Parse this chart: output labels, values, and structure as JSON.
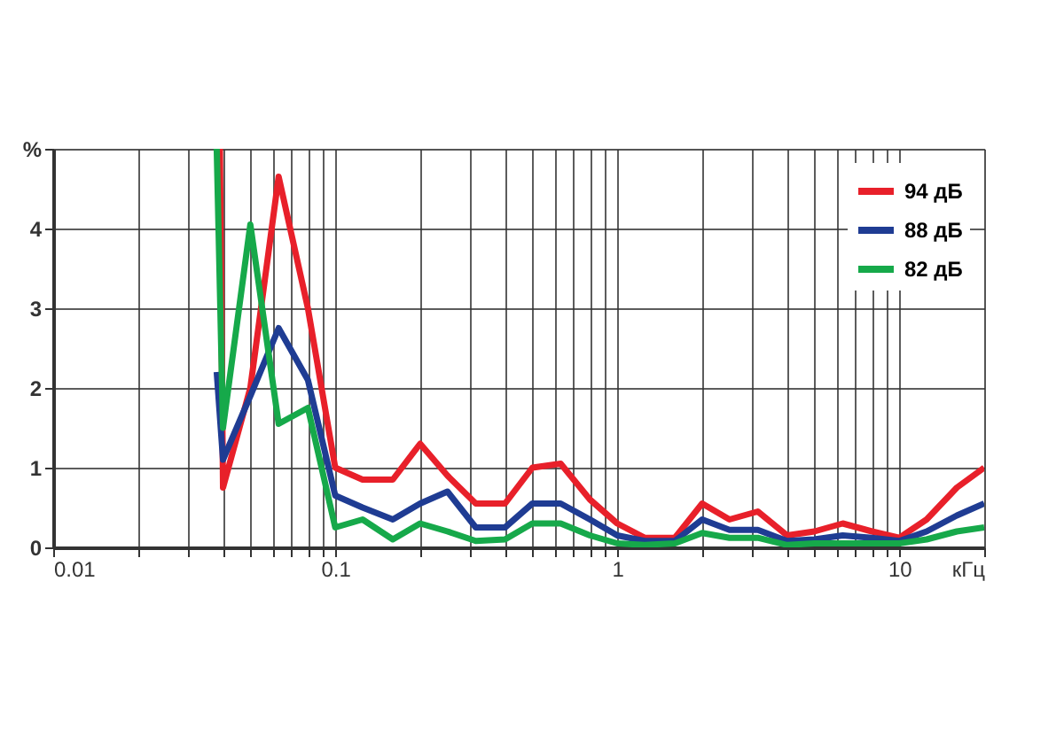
{
  "chart_data": {
    "type": "line",
    "xlim": [
      0.01,
      20
    ],
    "ylim": [
      0,
      5
    ],
    "log": "x",
    "grid": true,
    "legend": "top right",
    "line_style": "solid",
    "xticks": [
      0.01,
      {
        "value": 0.02,
        "label": null
      },
      {
        "value": 0.03,
        "label": null
      },
      {
        "value": 0.04,
        "label": null
      },
      {
        "value": 0.05,
        "label": null
      },
      {
        "value": 0.06,
        "label": null
      },
      {
        "value": 0.07,
        "label": null
      },
      {
        "value": 0.08,
        "label": null
      },
      {
        "value": 0.09,
        "label": null
      },
      0.1,
      {
        "value": 0.2,
        "label": null
      },
      {
        "value": 0.3,
        "label": null
      },
      {
        "value": 0.4,
        "label": null
      },
      {
        "value": 0.5,
        "label": null
      },
      {
        "value": 0.6,
        "label": null
      },
      {
        "value": 0.7,
        "label": null
      },
      {
        "value": 0.8,
        "label": null
      },
      {
        "value": 0.9,
        "label": null
      },
      1,
      {
        "value": 2,
        "label": null
      },
      {
        "value": 3,
        "label": null
      },
      {
        "value": 4,
        "label": null
      },
      {
        "value": 5,
        "label": null
      },
      {
        "value": 6,
        "label": null
      },
      {
        "value": 7,
        "label": null
      },
      {
        "value": 8,
        "label": null
      },
      {
        "value": 9,
        "label": null
      },
      10,
      {
        "value": 20,
        "label": "кГц"
      }
    ],
    "yticks": [
      0,
      1,
      2,
      3,
      4,
      {
        "value": 5,
        "label": "%"
      }
    ],
    "series": [
      {
        "name": "94 дБ",
        "color": "#e8202a",
        "x": [
          0.039,
          0.04,
          0.05,
          0.063,
          0.08,
          0.1,
          0.125,
          0.16,
          0.2,
          0.25,
          0.315,
          0.4,
          0.5,
          0.63,
          0.8,
          1,
          1.25,
          1.6,
          2,
          2.5,
          3.15,
          4,
          5,
          6.3,
          8,
          10,
          12.5,
          16,
          20
        ],
        "values": [
          5.0,
          0.75,
          2.0,
          4.65,
          3.0,
          1.0,
          0.85,
          0.85,
          1.3,
          0.9,
          0.55,
          0.55,
          1.0,
          1.05,
          0.6,
          0.3,
          0.12,
          0.12,
          0.55,
          0.35,
          0.45,
          0.15,
          0.2,
          0.3,
          0.2,
          0.12,
          0.35,
          0.75,
          1.0
        ]
      },
      {
        "name": "88 дБ",
        "color": "#1f3c93",
        "x": [
          0.038,
          0.04,
          0.05,
          0.063,
          0.08,
          0.1,
          0.125,
          0.16,
          0.2,
          0.25,
          0.315,
          0.4,
          0.5,
          0.63,
          0.8,
          1,
          1.25,
          1.6,
          2,
          2.5,
          3.15,
          4,
          5,
          6.3,
          8,
          10,
          12.5,
          16,
          20
        ],
        "values": [
          2.2,
          1.1,
          1.9,
          2.75,
          2.1,
          0.65,
          0.5,
          0.35,
          0.55,
          0.7,
          0.25,
          0.25,
          0.55,
          0.55,
          0.35,
          0.15,
          0.08,
          0.08,
          0.35,
          0.22,
          0.22,
          0.08,
          0.1,
          0.15,
          0.12,
          0.08,
          0.2,
          0.4,
          0.55
        ]
      },
      {
        "name": "82 дБ",
        "color": "#16a94a",
        "x": [
          0.038,
          0.04,
          0.05,
          0.063,
          0.08,
          0.1,
          0.125,
          0.16,
          0.2,
          0.25,
          0.315,
          0.4,
          0.5,
          0.63,
          0.8,
          1,
          1.25,
          1.6,
          2,
          2.5,
          3.15,
          4,
          5,
          6.3,
          8,
          10,
          12.5,
          16,
          20
        ],
        "values": [
          5.0,
          1.5,
          4.05,
          1.55,
          1.75,
          0.25,
          0.35,
          0.1,
          0.3,
          0.2,
          0.08,
          0.1,
          0.3,
          0.3,
          0.15,
          0.05,
          0.03,
          0.05,
          0.18,
          0.12,
          0.12,
          0.03,
          0.05,
          0.05,
          0.05,
          0.05,
          0.1,
          0.2,
          0.25
        ]
      }
    ]
  }
}
